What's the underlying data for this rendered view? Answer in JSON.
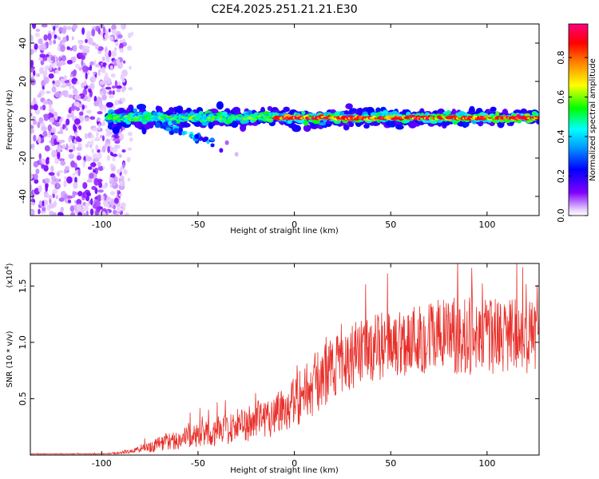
{
  "title": "C2E4.2025.251.21.21.E30",
  "chart_data": [
    {
      "type": "heatmap",
      "name": "spectrogram",
      "xlabel": "Height of straight line (km)",
      "ylabel": "Frequency (Hz)",
      "xlim": [
        -137,
        127
      ],
      "ylim": [
        -50,
        50
      ],
      "x_ticks": [
        -100,
        -50,
        0,
        50,
        100
      ],
      "x_tick_labels": [
        "-100",
        "-50",
        "0",
        "50",
        "100"
      ],
      "y_ticks": [
        -40,
        -20,
        0,
        20,
        40
      ],
      "y_tick_labels": [
        "-40",
        "-20",
        "0",
        "20",
        "40"
      ],
      "noise_region_km": [
        -137,
        -88
      ],
      "sparse_region_km": [
        -100,
        -84
      ],
      "signal_band": {
        "start_km": -97,
        "end_km": 127,
        "center_hz": 1,
        "half_width_hz": 4,
        "peak_amplitude_start_km": -10
      },
      "secondary_streak": {
        "start_km": -72,
        "end_km": -42,
        "start_hz": -2,
        "end_hz": -12
      },
      "colorbar": {
        "label": "Normalized spectral amplitude",
        "range": [
          0,
          0.97
        ],
        "ticks": [
          0.0,
          0.2,
          0.4,
          0.6,
          0.8
        ],
        "tick_labels": [
          "0.0",
          "0.2",
          "0.4",
          "0.6",
          "0.8"
        ],
        "colormap": [
          "#ffffff",
          "#8000ff",
          "#0000ff",
          "#00ffff",
          "#00ff00",
          "#ffff00",
          "#ff0000",
          "#ff0080"
        ]
      }
    },
    {
      "type": "line",
      "name": "snr",
      "xlabel": "Height of straight line (km)",
      "ylabel": "SNR (10 * v/v)",
      "y_scale_label": "(x10",
      "y_scale_exp": "4",
      "xlim": [
        -137,
        127
      ],
      "ylim": [
        0,
        1.7
      ],
      "x_ticks": [
        -100,
        -50,
        0,
        50,
        100
      ],
      "x_tick_labels": [
        "-100",
        "-50",
        "0",
        "50",
        "100"
      ],
      "y_ticks": [
        0.5,
        1.0,
        1.5
      ],
      "y_tick_labels": [
        "0.5",
        "1.0",
        "1.5"
      ],
      "color": "#e8302a",
      "trend_x": [
        -137,
        -100,
        -90,
        -80,
        -70,
        -60,
        -50,
        -40,
        -30,
        -20,
        -10,
        0,
        10,
        20,
        30,
        40,
        50,
        60,
        70,
        80,
        90,
        100,
        110,
        127
      ],
      "trend_y": [
        0.01,
        0.01,
        0.02,
        0.05,
        0.1,
        0.14,
        0.18,
        0.21,
        0.26,
        0.3,
        0.37,
        0.48,
        0.62,
        0.78,
        0.88,
        0.95,
        0.98,
        1.02,
        1.05,
        1.06,
        1.05,
        1.05,
        1.05,
        1.05
      ],
      "spread_y": [
        0.003,
        0.004,
        0.01,
        0.03,
        0.07,
        0.09,
        0.11,
        0.13,
        0.15,
        0.17,
        0.2,
        0.24,
        0.28,
        0.28,
        0.29,
        0.3,
        0.3,
        0.32,
        0.33,
        0.34,
        0.34,
        0.34,
        0.34,
        0.34
      ]
    }
  ]
}
